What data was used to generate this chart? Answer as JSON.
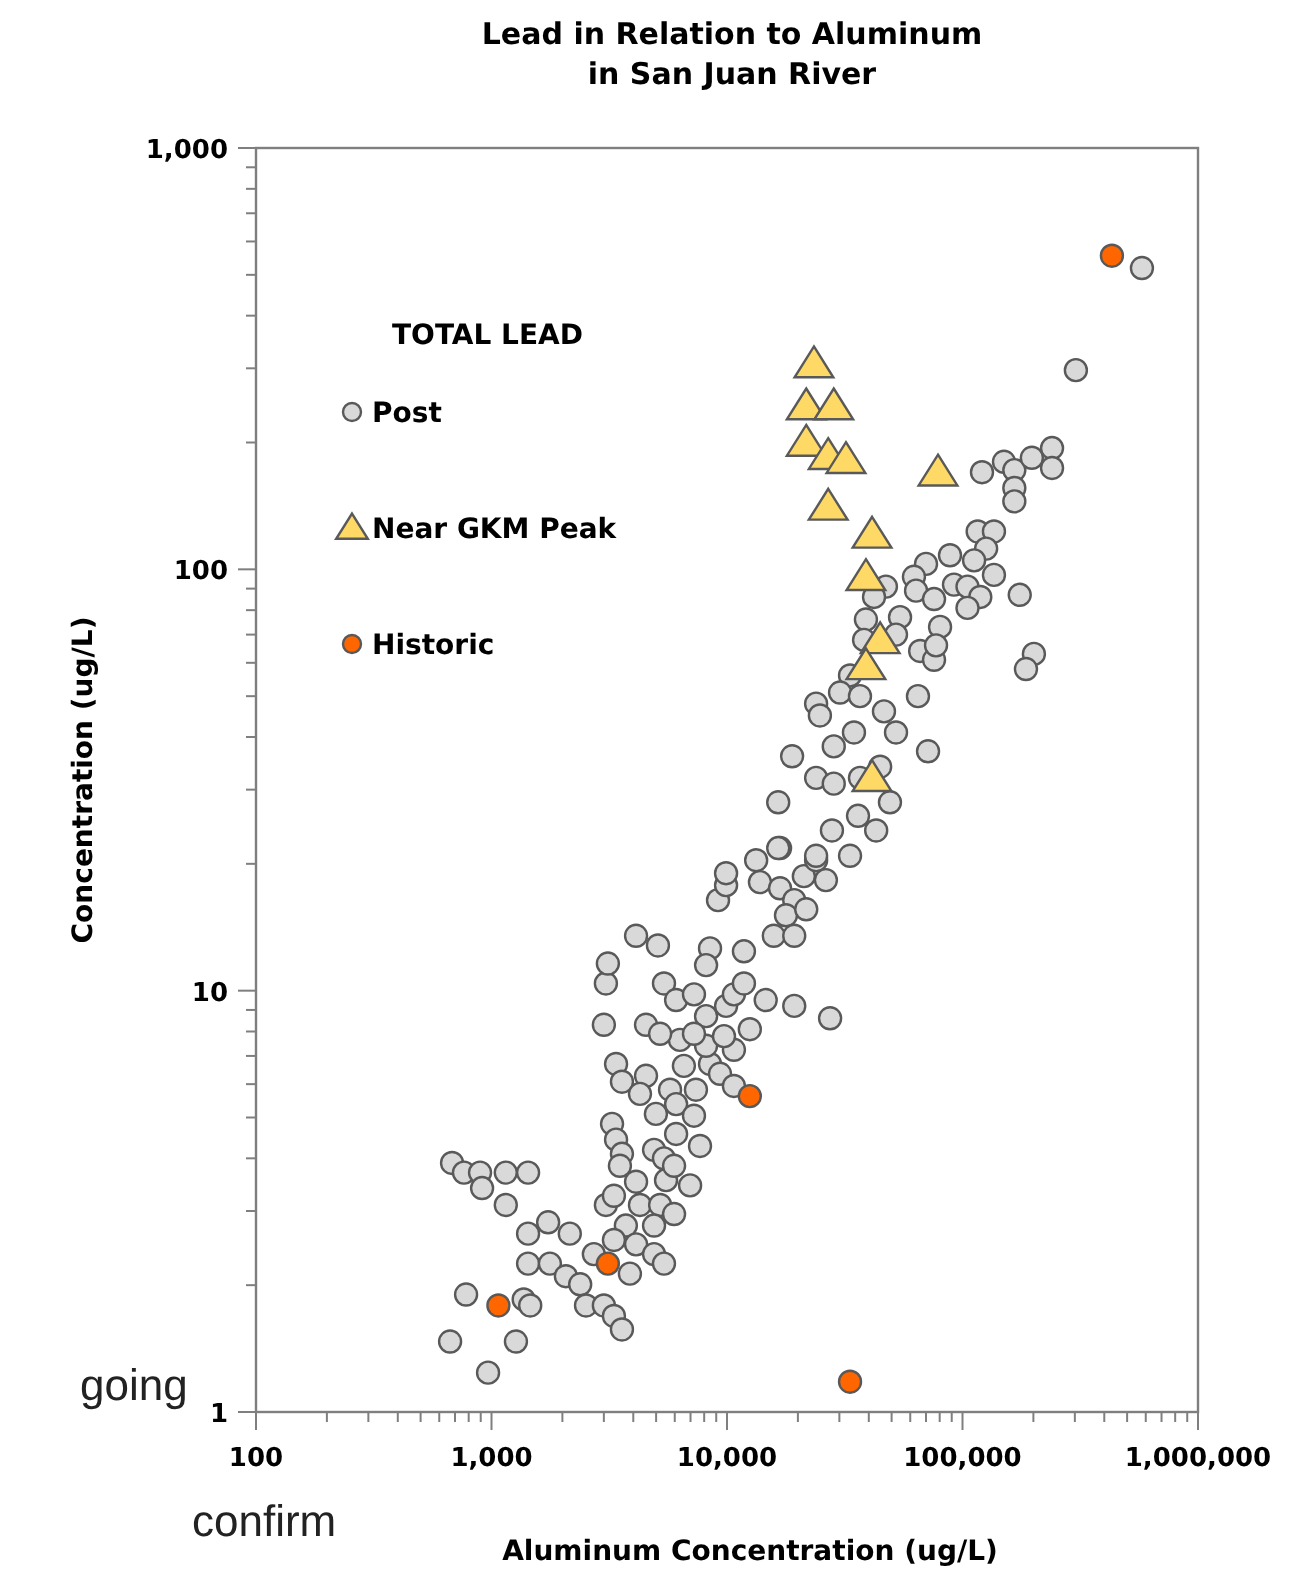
{
  "chart_data": {
    "type": "scatter",
    "title": "Lead in Relation to Aluminum\nin San Juan River",
    "xlabel": "Aluminum Concentration (ug/L)",
    "ylabel": "Concentration  (ug/L)",
    "legend_title": "TOTAL LEAD",
    "legend": "top left",
    "log": "xy",
    "grid": false,
    "xlim": [
      100,
      1000000
    ],
    "ylim": [
      1,
      1000
    ],
    "xticks": [
      100,
      {
        "value": 1000,
        "label": "1,000"
      },
      {
        "value": 10000,
        "label": "10,000"
      },
      {
        "value": 100000,
        "label": "100,000"
      },
      {
        "value": 1000000,
        "label": "1,000,000"
      }
    ],
    "yticks": [
      1,
      10,
      100,
      {
        "value": 1000,
        "label": "1,000"
      }
    ],
    "annotations": [
      "going",
      "confirm"
    ],
    "series": [
      {
        "name": "Post",
        "color": "#d9d9d9",
        "marker": "circle",
        "x": [
          680,
          764,
          894,
          912,
          1150,
          1430,
          1150,
          780,
          667,
          1270,
          967,
          1370,
          1460,
          1430,
          1740,
          2150,
          1430,
          1770,
          2070,
          2380,
          2520,
          3000,
          3310,
          3580,
          3060,
          3310,
          4270,
          4110,
          5510,
          6970,
          5200,
          5960,
          3720,
          4900,
          4110,
          4900,
          5400,
          3870,
          2720,
          3310,
          3250,
          3380,
          3580,
          3510,
          4900,
          5400,
          6080,
          7680,
          5960,
          3380,
          3580,
          4530,
          4270,
          4990,
          5730,
          6080,
          7380,
          7240,
          6560,
          8470,
          9340,
          10700,
          10700,
          8150,
          6310,
          5400,
          6080,
          7240,
          8150,
          7240,
          9710,
          12500,
          9910,
          10700,
          11800,
          14600,
          19300,
          27400,
          4530,
          5200,
          3000,
          3060,
          3120,
          4110,
          5090,
          8470,
          11800,
          8150,
          9160,
          9910,
          9910,
          13300,
          16800,
          13800,
          16800,
          19300,
          21200,
          23900,
          26300,
          17800,
          15800,
          19300,
          21700,
          303000,
          121000,
          150000,
          166000,
          197000,
          240000,
          240000,
          166000,
          166000,
          116000,
          136000,
          126000,
          112000,
          88500,
          70000,
          62200,
          63500,
          75700,
          92000,
          105000,
          119000,
          105000,
          136000,
          175000,
          80300,
          54300,
          52200,
          66100,
          75700,
          77200,
          201000,
          186000,
          47300,
          42100,
          38900,
          38200,
          33300,
          30200,
          23900,
          24800,
          36700,
          64700,
          46400,
          52200,
          34600,
          28400,
          18900,
          71400,
          23900,
          28400,
          36700,
          44700,
          49200,
          16500,
          36000,
          43000,
          27900,
          16500,
          23900,
          33300,
          578000
        ],
        "values": [
          3.9,
          3.7,
          3.7,
          3.4,
          3.7,
          3.7,
          3.1,
          1.9,
          1.47,
          1.47,
          1.24,
          1.85,
          1.79,
          2.65,
          2.82,
          2.65,
          2.25,
          2.25,
          2.1,
          2.01,
          1.79,
          1.79,
          1.69,
          1.57,
          3.1,
          3.26,
          3.1,
          3.52,
          3.55,
          3.45,
          3.1,
          2.95,
          2.77,
          2.77,
          2.5,
          2.37,
          2.25,
          2.13,
          2.37,
          2.56,
          4.83,
          4.43,
          4.1,
          3.84,
          4.19,
          4.0,
          4.57,
          4.28,
          3.84,
          6.7,
          6.08,
          6.28,
          5.69,
          5.1,
          5.82,
          5.38,
          5.82,
          5.05,
          6.63,
          6.7,
          6.35,
          5.94,
          7.24,
          7.4,
          7.64,
          10.4,
          9.5,
          9.8,
          8.7,
          7.9,
          7.8,
          8.1,
          9.2,
          9.8,
          10.4,
          9.5,
          9.2,
          8.6,
          8.3,
          7.9,
          8.3,
          10.4,
          11.6,
          13.5,
          12.8,
          12.6,
          12.4,
          11.5,
          16.4,
          17.8,
          19,
          20.4,
          21.8,
          18.1,
          17.5,
          16.4,
          18.7,
          20.4,
          18.3,
          15.1,
          13.5,
          13.5,
          15.6,
          297,
          170,
          180,
          172,
          184,
          194,
          174,
          156,
          145,
          123,
          123,
          112,
          105,
          108,
          103,
          96,
          89,
          85,
          92,
          91,
          86,
          81,
          97,
          87,
          73,
          77,
          70,
          64,
          61,
          66,
          63,
          58,
          91,
          86,
          76,
          68,
          56,
          51,
          48,
          45,
          50,
          50,
          46,
          41,
          41,
          38,
          36,
          37,
          32,
          31,
          32,
          34,
          28,
          28,
          26,
          24,
          24,
          21.8,
          20.9,
          20.9,
          519
        ]
      },
      {
        "name": "Near GKM Peak",
        "color": "#ffd966",
        "marker": "triangle",
        "x": [
          23400,
          21700,
          28400,
          21700,
          26900,
          32000,
          78700,
          26900,
          41300,
          38900,
          44700,
          38900,
          41300
        ],
        "values": [
          307,
          244,
          244,
          200,
          186,
          182,
          170,
          141,
          121,
          96,
          68,
          59,
          32
        ]
      },
      {
        "name": "Historic",
        "color": "#ff6600",
        "marker": "circle",
        "x": [
          431000,
          12500,
          3120,
          1070,
          33300
        ],
        "values": [
          555,
          5.62,
          2.25,
          1.79,
          1.18
        ]
      }
    ]
  }
}
